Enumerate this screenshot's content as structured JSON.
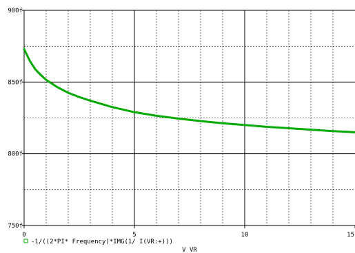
{
  "chart_data": {
    "type": "line",
    "title": "",
    "xlabel": "V VR",
    "ylabel": "",
    "xlim": [
      0,
      15
    ],
    "ylim": [
      750,
      900
    ],
    "x_ticks": [
      "0",
      "5",
      "10",
      "15"
    ],
    "y_ticks": [
      "900f",
      "850f",
      "800f",
      "750f"
    ],
    "y_tick_values": [
      900,
      850,
      800,
      750
    ],
    "x_tick_values": [
      0,
      5,
      10,
      15
    ],
    "grid": true,
    "legend_position": "bottom-left",
    "series": [
      {
        "name": "-1/((2*PI* Frequency)*IMG(1/ I(VR:+)))",
        "color": "#00aa00",
        "x": [
          0,
          0.25,
          0.5,
          0.75,
          1,
          1.5,
          2,
          2.5,
          3,
          4,
          5,
          6,
          7,
          8,
          9,
          10,
          11,
          12,
          13,
          14,
          15
        ],
        "y": [
          873,
          865,
          859,
          855,
          851.5,
          846.5,
          842.5,
          839.5,
          837,
          832.5,
          829,
          826.5,
          824.5,
          822.8,
          821.3,
          820,
          818.8,
          817.8,
          816.8,
          815.8,
          815
        ]
      }
    ]
  },
  "legend": {
    "marker": "square-marker-icon",
    "label": "-1/((2*PI* Frequency)*IMG(1/ I(VR:+)))"
  },
  "axis": {
    "x_title": "V VR"
  }
}
